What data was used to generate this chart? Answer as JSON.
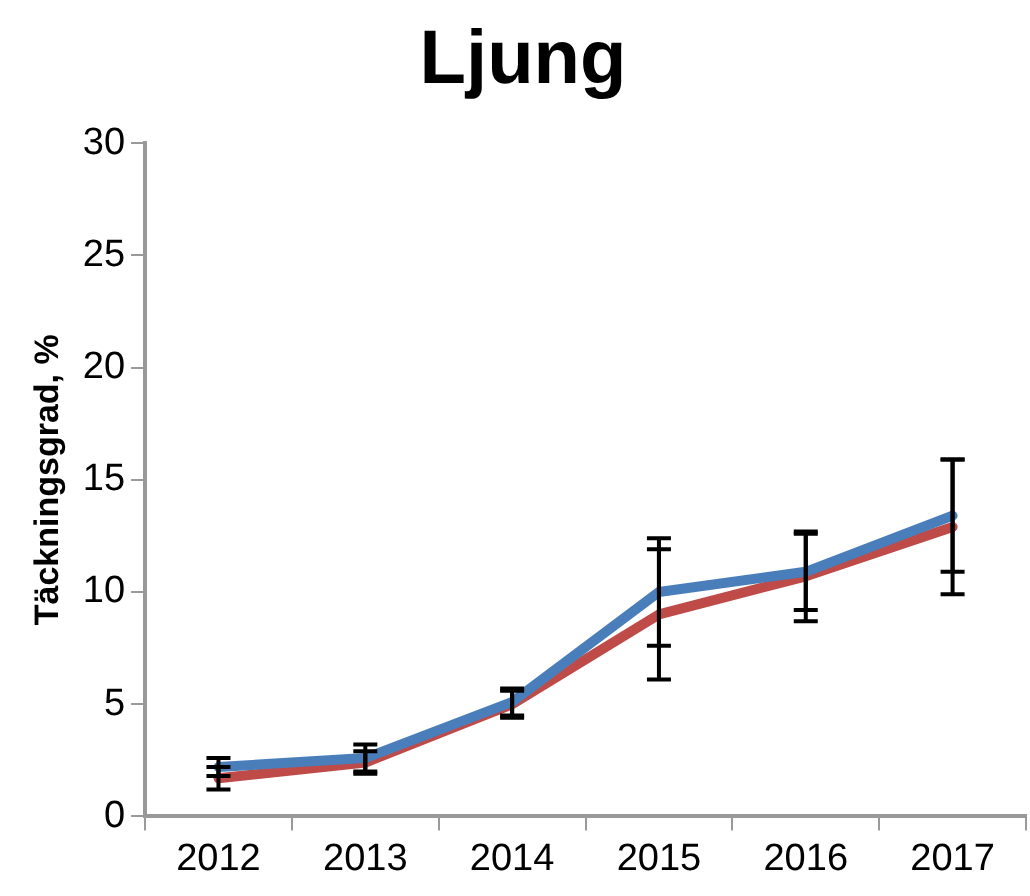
{
  "chart_data": {
    "type": "line",
    "title": "Ljung",
    "ylabel": "Täckningsgrad, %",
    "categories": [
      "2012",
      "2013",
      "2014",
      "2015",
      "2016",
      "2017"
    ],
    "series": [
      {
        "color": "#4a7ebb",
        "values": [
          2.2,
          2.6,
          5.1,
          10.0,
          10.9,
          13.4
        ],
        "errors": [
          0.4,
          0.6,
          0.6,
          2.4,
          1.7,
          2.5
        ]
      },
      {
        "color": "#be4b48",
        "values": [
          1.7,
          2.4,
          5.0,
          9.0,
          10.7,
          12.9
        ],
        "errors": [
          0.5,
          0.5,
          0.6,
          2.9,
          2.0,
          3.0
        ]
      }
    ],
    "ylim": [
      0,
      30
    ],
    "yticks": [
      0,
      5,
      10,
      15,
      20,
      25,
      30
    ],
    "grid": false,
    "legend": false,
    "line_style": "solid"
  }
}
